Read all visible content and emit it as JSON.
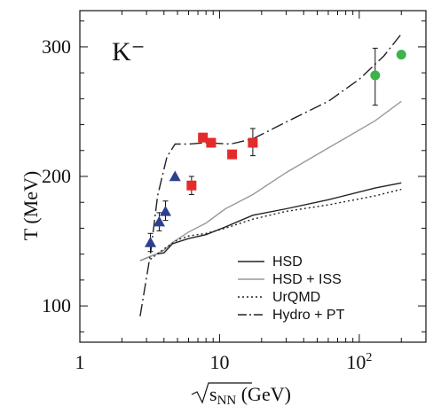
{
  "chart_data": {
    "type": "line",
    "panel_label": "K⁻",
    "xlabel_prefix": "√",
    "xlabel_sub": "s",
    "xlabel_subscript": "NN",
    "xlabel_suffix": " (GeV)",
    "ylabel": "T (MeV)",
    "x_scale": "log",
    "xlim": [
      1,
      300
    ],
    "ylim": [
      72,
      328
    ],
    "x_ticks": [
      {
        "value": 1,
        "label": "1",
        "sup": ""
      },
      {
        "value": 10,
        "label": "10",
        "sup": ""
      },
      {
        "value": 100,
        "label": "10",
        "sup": "2"
      }
    ],
    "y_ticks": [
      {
        "value": 100,
        "label": "100"
      },
      {
        "value": 200,
        "label": "200"
      },
      {
        "value": 300,
        "label": "300"
      }
    ],
    "legend_position": "bottom-right",
    "series": [
      {
        "name": "HSD",
        "style": "solid",
        "color": "#222222",
        "points": [
          [
            2.7,
            135
          ],
          [
            3.5,
            140
          ],
          [
            4.0,
            141
          ],
          [
            4.6,
            148
          ],
          [
            6.0,
            152
          ],
          [
            8.0,
            155
          ],
          [
            11.0,
            161
          ],
          [
            17.3,
            170
          ],
          [
            30,
            175
          ],
          [
            60,
            182
          ],
          [
            130,
            191
          ],
          [
            200,
            195
          ]
        ]
      },
      {
        "name": "HSD + ISS",
        "style": "solid",
        "color": "#999999",
        "points": [
          [
            2.7,
            135
          ],
          [
            3.5,
            140
          ],
          [
            4.0,
            143
          ],
          [
            4.6,
            149
          ],
          [
            6.0,
            157
          ],
          [
            8.0,
            164
          ],
          [
            11.0,
            175
          ],
          [
            17.3,
            186
          ],
          [
            30,
            203
          ],
          [
            60,
            222
          ],
          [
            130,
            243
          ],
          [
            200,
            258
          ]
        ]
      },
      {
        "name": "UrQMD",
        "style": "dotted",
        "color": "#222222",
        "points": [
          [
            3.2,
            136
          ],
          [
            4.0,
            144
          ],
          [
            5.0,
            151
          ],
          [
            6.0,
            154
          ],
          [
            8.0,
            156
          ],
          [
            11.0,
            160
          ],
          [
            17.3,
            167
          ],
          [
            30,
            173
          ],
          [
            60,
            178
          ],
          [
            130,
            185
          ],
          [
            200,
            190
          ]
        ]
      },
      {
        "name": "Hydro + PT",
        "style": "dashdot",
        "color": "#222222",
        "points": [
          [
            2.7,
            92
          ],
          [
            3.2,
            140
          ],
          [
            3.6,
            185
          ],
          [
            4.2,
            215
          ],
          [
            4.8,
            225
          ],
          [
            6.0,
            225
          ],
          [
            8.0,
            226
          ],
          [
            12,
            225
          ],
          [
            17.3,
            229
          ],
          [
            30,
            242
          ],
          [
            60,
            258
          ],
          [
            100,
            275
          ],
          [
            150,
            293
          ],
          [
            200,
            310
          ]
        ]
      }
    ],
    "markers": [
      {
        "name": "",
        "shape": "triangle",
        "color": "#2e3f8f",
        "points": [
          [
            3.2,
            149,
            156,
            142
          ],
          [
            3.7,
            165,
            172,
            158
          ],
          [
            4.1,
            173,
            181,
            166
          ],
          [
            4.8,
            200,
            0,
            0
          ]
        ]
      },
      {
        "name": "",
        "shape": "square",
        "color": "#e52a2a",
        "points": [
          [
            6.3,
            193,
            200,
            186
          ],
          [
            7.6,
            230,
            0,
            0
          ],
          [
            8.7,
            226,
            0,
            0
          ],
          [
            12.3,
            217,
            0,
            0
          ],
          [
            17.3,
            226,
            237,
            216
          ]
        ]
      },
      {
        "name": "",
        "shape": "circle",
        "color": "#3db34a",
        "points": [
          [
            130,
            278,
            299,
            255
          ],
          [
            200,
            294,
            0,
            0
          ]
        ]
      }
    ]
  }
}
